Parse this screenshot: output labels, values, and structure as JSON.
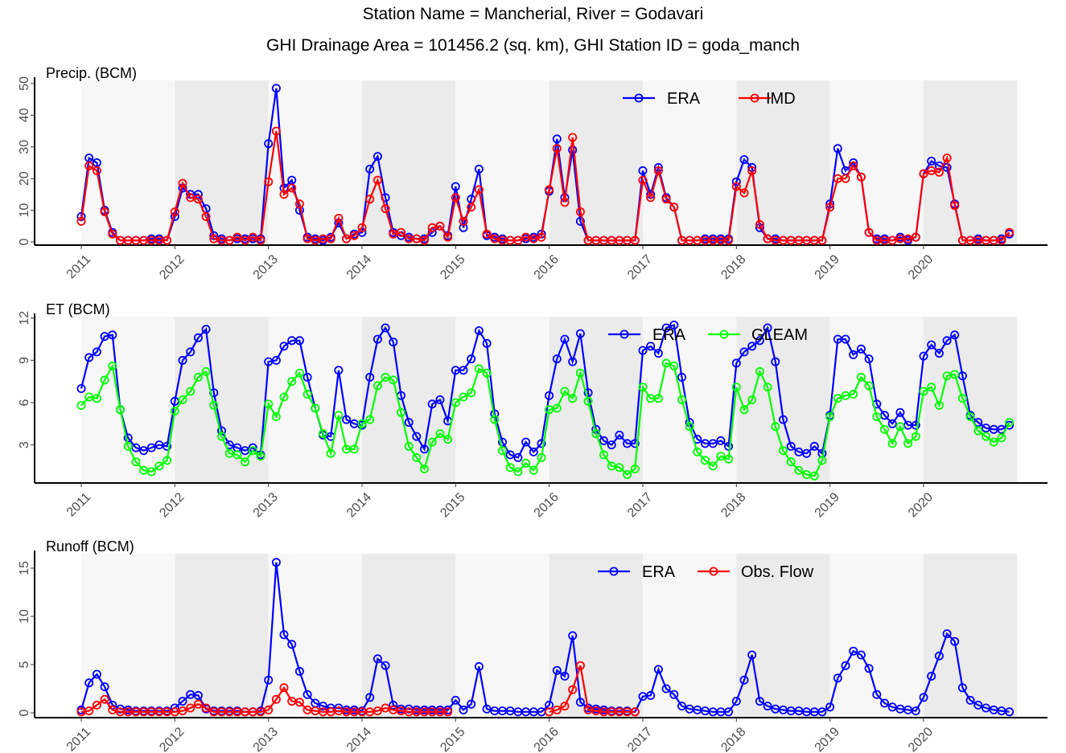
{
  "header": {
    "title_line1": "Station Name = Mancherial, River = Godavari",
    "title_line2": "GHI Drainage Area = 101456.2 (sq. km), GHI Station ID = goda_manch"
  },
  "chart_data": [
    {
      "type": "line",
      "title": "Precip. (BCM)",
      "x_start": "2011-01",
      "x_tick_labels": [
        "2011",
        "2012",
        "2013",
        "2014",
        "2015",
        "2016",
        "2017",
        "2018",
        "2019",
        "2020"
      ],
      "ylim": [
        -1,
        51
      ],
      "y_ticks": [
        0,
        10,
        20,
        30,
        40,
        50
      ],
      "legend_position": "top-right",
      "series": [
        {
          "name": "ERA",
          "color": "#0000ff",
          "values": [
            8,
            26.5,
            25,
            10,
            3,
            0.5,
            0.5,
            0.5,
            0.5,
            1,
            1,
            0.5,
            8,
            17,
            15,
            15,
            10.5,
            2,
            1,
            0.5,
            1,
            1,
            1,
            1,
            31,
            48.5,
            17,
            19.5,
            10,
            1.5,
            1,
            0.5,
            1.5,
            6,
            1,
            2.5,
            3,
            23,
            27,
            14,
            3,
            2,
            1.5,
            1,
            1,
            3,
            5,
            2,
            17.5,
            4.5,
            13.5,
            23,
            2,
            1.5,
            1,
            0.5,
            0.5,
            1,
            1.5,
            2.5,
            16,
            32.5,
            14,
            29,
            6.5,
            0.5,
            0.5,
            0.5,
            0.5,
            0.5,
            0.5,
            0.5,
            22.5,
            15,
            23.5,
            14,
            11,
            0.5,
            0.5,
            0.5,
            1,
            1,
            1,
            1,
            19,
            26,
            23.5,
            4.5,
            1,
            1,
            0.5,
            0.5,
            0.5,
            0.5,
            0.5,
            0.5,
            12,
            29.5,
            22.5,
            25,
            20.5,
            3,
            1,
            1,
            0.5,
            1.5,
            0.5,
            1.5,
            21.5,
            25.5,
            24,
            23.5,
            12,
            0.5,
            0.5,
            1,
            0.5,
            0.5,
            1,
            2.5
          ]
        },
        {
          "name": "IMD",
          "color": "#ff0000",
          "values": [
            6.5,
            24,
            22.5,
            9.5,
            2.5,
            0.5,
            0.5,
            0.5,
            0.5,
            0.5,
            0.5,
            0.5,
            9.5,
            18.5,
            14,
            13.5,
            8,
            1,
            0.5,
            0.5,
            1.5,
            0.5,
            1.5,
            0.5,
            19,
            35,
            15,
            17,
            12,
            1,
            0.5,
            1,
            1,
            7.5,
            1,
            2,
            4.5,
            13.5,
            19.5,
            10.5,
            2.5,
            3,
            1,
            1,
            0.5,
            4.5,
            5,
            1.5,
            14,
            6.5,
            11,
            16.5,
            2.5,
            1,
            0.5,
            0.5,
            0.5,
            1.5,
            1,
            1.5,
            16.5,
            29.5,
            12.5,
            33,
            9.5,
            0.5,
            0.5,
            0.5,
            0.5,
            0.5,
            0.5,
            0.5,
            19.5,
            14,
            22.5,
            13.5,
            11,
            0.5,
            0.5,
            0.5,
            0.5,
            0.5,
            0.5,
            0.5,
            17.5,
            15.5,
            22.5,
            5.5,
            1,
            0.5,
            0.5,
            0.5,
            0.5,
            0.5,
            0.5,
            0.5,
            11,
            20,
            20,
            24,
            20.5,
            3,
            0.5,
            0.5,
            0.5,
            1,
            1,
            1.5,
            21.5,
            22.5,
            22,
            26.5,
            11.5,
            0.5,
            0.5,
            0.5,
            0.5,
            0.5,
            0.5,
            3
          ]
        }
      ]
    },
    {
      "type": "line",
      "title": "ET (BCM)",
      "x_start": "2011-01",
      "x_tick_labels": [
        "2011",
        "2012",
        "2013",
        "2014",
        "2015",
        "2016",
        "2017",
        "2018",
        "2019",
        "2020"
      ],
      "ylim": [
        0.3,
        12.1
      ],
      "y_ticks": [
        3,
        6,
        9,
        12
      ],
      "legend_position": "top-right",
      "series": [
        {
          "name": "ERA",
          "color": "#0000ff",
          "values": [
            7,
            9.2,
            9.6,
            10.7,
            10.8,
            5.5,
            3.5,
            2.8,
            2.6,
            2.8,
            3,
            2.9,
            6.1,
            9,
            9.6,
            10.6,
            11.2,
            6.7,
            4,
            3,
            2.8,
            2.6,
            2.8,
            2.3,
            8.9,
            9,
            10,
            10.4,
            10.4,
            7.8,
            5.6,
            3.7,
            3.6,
            8.3,
            4.8,
            4.5,
            4.4,
            7.8,
            10.5,
            11.3,
            10.3,
            6.5,
            4.6,
            3.6,
            2.7,
            5.9,
            6.2,
            4.7,
            8.3,
            8.3,
            9.1,
            11.1,
            10.2,
            5.2,
            3.2,
            2.3,
            2.1,
            3.2,
            2.5,
            3.1,
            6.5,
            9.1,
            10.5,
            8.9,
            10.9,
            6.7,
            4.1,
            3.3,
            3,
            3.7,
            3.1,
            3.1,
            9.7,
            10,
            9.5,
            11.3,
            11.5,
            7.8,
            4.6,
            3.4,
            3.1,
            3.1,
            3.3,
            2.9,
            8.8,
            9.6,
            10,
            10.4,
            11.3,
            8.9,
            4.8,
            2.9,
            2.5,
            2.4,
            2.9,
            2.4,
            5.1,
            10.5,
            10.5,
            9.4,
            9.8,
            9.1,
            5.9,
            5.1,
            4.5,
            5.3,
            4.4,
            4.4,
            9.3,
            10.1,
            9.5,
            10.4,
            10.8,
            7.9,
            5.1,
            4.6,
            4.2,
            4.1,
            4.1,
            4.4
          ]
        },
        {
          "name": "GLEAM",
          "color": "#00ff00",
          "values": [
            5.8,
            6.4,
            6.3,
            7.6,
            8.6,
            5.5,
            2.9,
            1.8,
            1.2,
            1.1,
            1.5,
            1.9,
            5.4,
            6.2,
            6.8,
            7.8,
            8.2,
            5.8,
            3.6,
            2.4,
            2.3,
            1.8,
            2.6,
            2.2,
            5.9,
            5,
            6.4,
            7.5,
            8.1,
            6.6,
            5.6,
            3.8,
            2.4,
            5.1,
            2.7,
            2.7,
            4.5,
            4.8,
            7.2,
            7.8,
            7.6,
            5.3,
            2.9,
            2.1,
            1.3,
            3.2,
            3.8,
            3.4,
            6,
            6.4,
            6.7,
            8.4,
            8.1,
            4.8,
            2.6,
            1.4,
            1.1,
            1.7,
            1.2,
            2.1,
            5.5,
            5.6,
            6.8,
            6.3,
            8.1,
            6.1,
            3.8,
            2.3,
            1.5,
            1.4,
            0.9,
            1.3,
            7.1,
            6.3,
            6.3,
            8.8,
            8.6,
            6.2,
            4.3,
            2.5,
            1.9,
            1.5,
            2.2,
            2,
            7.1,
            5.5,
            6.2,
            8.2,
            7.1,
            4.3,
            2.6,
            1.8,
            1.2,
            0.9,
            0.8,
            1.9,
            5,
            6.3,
            6.5,
            6.6,
            7.8,
            7.2,
            5,
            4.1,
            3.1,
            4.3,
            3.1,
            3.6,
            6.8,
            7.1,
            5.8,
            7.9,
            8,
            6.3,
            5,
            4,
            3.6,
            3.2,
            3.5,
            4.6
          ]
        }
      ]
    },
    {
      "type": "line",
      "title": "Runoff (BCM)",
      "x_start": "2011-01",
      "x_tick_labels": [
        "2011",
        "2012",
        "2013",
        "2014",
        "2015",
        "2016",
        "2017",
        "2018",
        "2019",
        "2020"
      ],
      "ylim": [
        -0.5,
        16.5
      ],
      "y_ticks": [
        0,
        5,
        10,
        15
      ],
      "legend_position": "top-right",
      "series": [
        {
          "name": "ERA",
          "color": "#0000ff",
          "values": [
            0.3,
            3.1,
            4,
            2.7,
            0.8,
            0.4,
            0.3,
            0.2,
            0.2,
            0.2,
            0.2,
            0.2,
            0.5,
            1.2,
            1.9,
            1.8,
            0.4,
            0.2,
            0.2,
            0.2,
            0.2,
            0.1,
            0.1,
            0.2,
            3.4,
            15.6,
            8.1,
            7.1,
            4.3,
            1.9,
            1.0,
            0.7,
            0.5,
            0.5,
            0.3,
            0.3,
            0.2,
            1.6,
            5.6,
            4.9,
            0.8,
            0.4,
            0.4,
            0.3,
            0.3,
            0.3,
            0.3,
            0.3,
            1.3,
            0.3,
            0.9,
            4.8,
            0.4,
            0.2,
            0.2,
            0.2,
            0.1,
            0.1,
            0.1,
            0.1,
            0.8,
            4.4,
            3.8,
            8.0,
            1.1,
            0.5,
            0.4,
            0.3,
            0.2,
            0.2,
            0.2,
            0.1,
            1.7,
            1.8,
            4.5,
            2.5,
            1.9,
            0.7,
            0.4,
            0.3,
            0.2,
            0.1,
            0.1,
            0.1,
            1.2,
            3.4,
            6.0,
            1.2,
            0.7,
            0.4,
            0.3,
            0.2,
            0.2,
            0.1,
            0.1,
            0.1,
            0.6,
            3.6,
            4.9,
            6.4,
            6.0,
            4.6,
            1.9,
            1.0,
            0.6,
            0.4,
            0.3,
            0.2,
            1.6,
            3.8,
            5.9,
            8.2,
            7.4,
            2.6,
            1.3,
            0.8,
            0.5,
            0.3,
            0.2,
            0.1
          ]
        },
        {
          "name": "Obs. Flow",
          "color": "#ff0000",
          "values": [
            0.1,
            0.2,
            0.8,
            1.4,
            0.3,
            0.1,
            0.1,
            0.1,
            0.1,
            0.1,
            0.1,
            0.1,
            0.1,
            0.2,
            0.5,
            0.9,
            0.5,
            0.1,
            0.1,
            0.1,
            0.1,
            0.1,
            0.1,
            0.1,
            0.3,
            1.4,
            2.6,
            1.2,
            1.1,
            0.3,
            0.2,
            0.1,
            0.1,
            0.2,
            0.1,
            0.1,
            0.1,
            0.1,
            0.2,
            0.5,
            0.3,
            0.2,
            0.1,
            0.1,
            0.1,
            0.1,
            0.1,
            0.1,
            null,
            null,
            null,
            null,
            null,
            null,
            null,
            null,
            null,
            null,
            null,
            null,
            0.1,
            0.3,
            0.7,
            2.4,
            4.9,
            0.3,
            0.2,
            0.1,
            0.1,
            0.1,
            0.1,
            0.1,
            null,
            null,
            null,
            null,
            null,
            null,
            null,
            null,
            null,
            null,
            null,
            null,
            null,
            null,
            null,
            null,
            null,
            null,
            null,
            null,
            null,
            null,
            null,
            null,
            null,
            null,
            null,
            null,
            null,
            null,
            null,
            null,
            null,
            null,
            null,
            null,
            null,
            null,
            null,
            null,
            null,
            null,
            null,
            null,
            null,
            null,
            null,
            null
          ]
        }
      ]
    }
  ]
}
